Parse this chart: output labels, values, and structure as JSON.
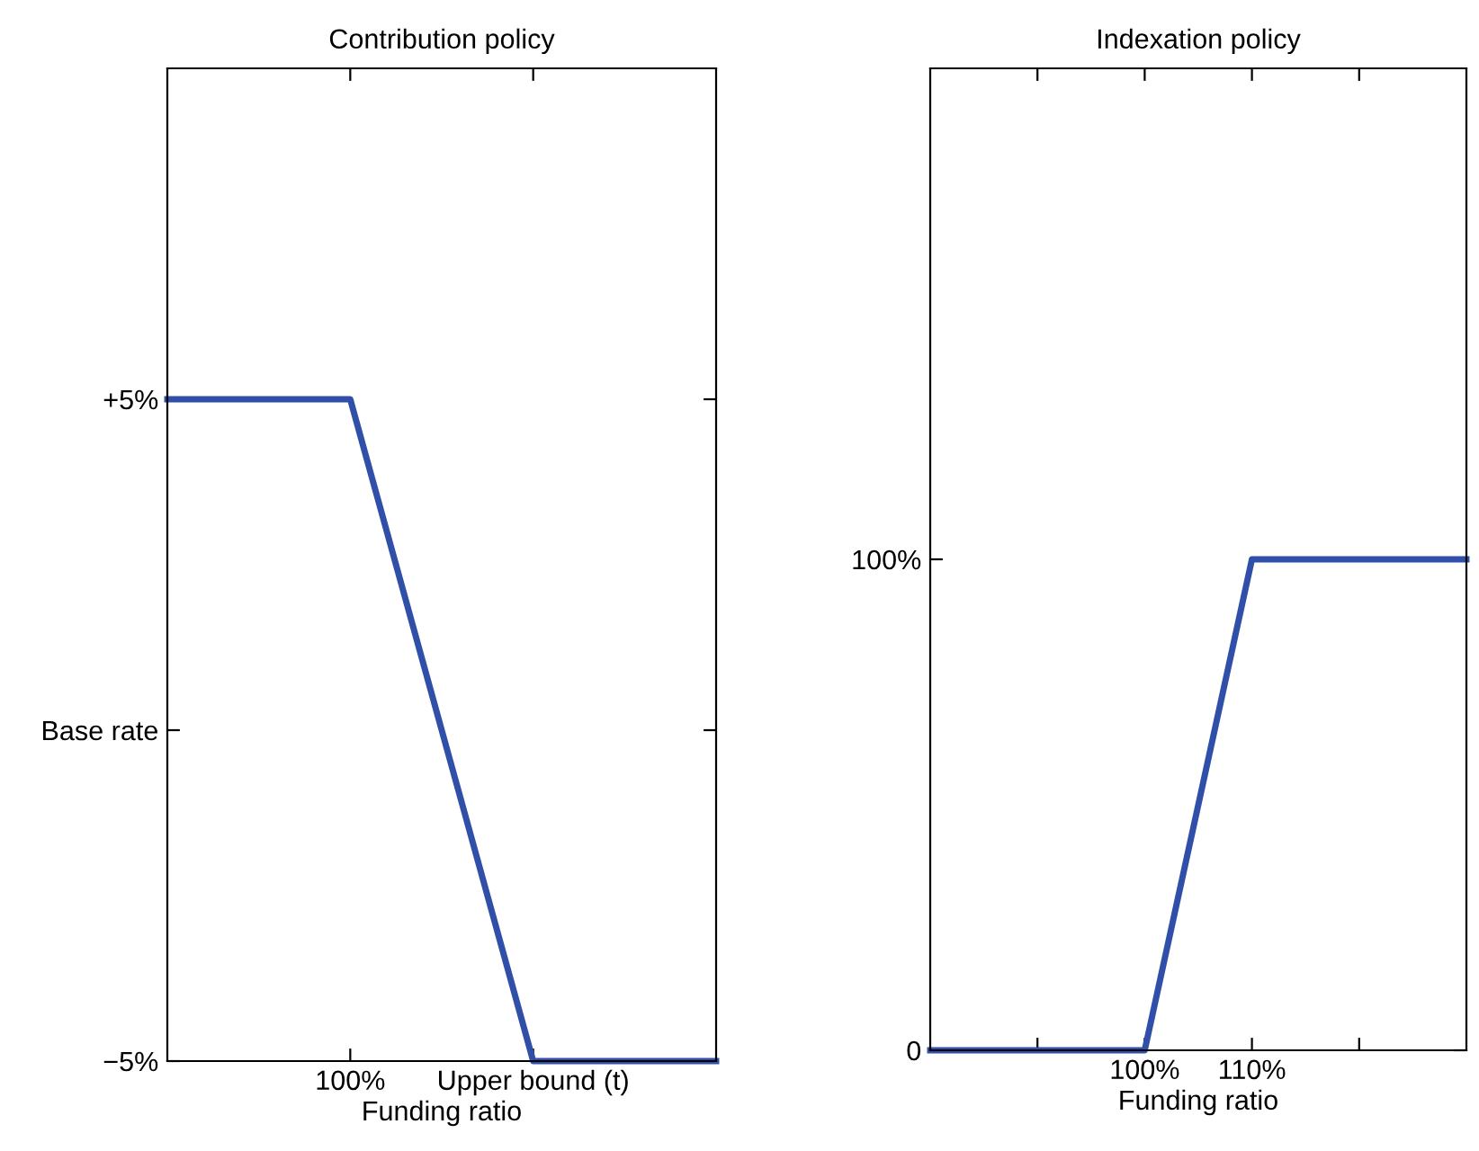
{
  "chart_data": [
    {
      "type": "line",
      "title": "Contribution policy",
      "xlabel": "Funding ratio",
      "categories": [
        null,
        "100%",
        "Upper bound (t)",
        null
      ],
      "series": [
        {
          "color": "#2f4fa8",
          "values": [
            5,
            5,
            -5,
            -5
          ]
        }
      ],
      "ylim": [
        -5,
        10
      ],
      "yticks": [
        {
          "value": -5,
          "label": "−5%"
        },
        {
          "value": 0,
          "label": "Base rate"
        },
        {
          "value": 5,
          "label": "+5%"
        }
      ],
      "grid": false,
      "legend": false,
      "marker": "none",
      "line_style": "solid"
    },
    {
      "type": "line",
      "title": "Indexation policy",
      "xlabel": "Funding ratio",
      "x": [
        80,
        100,
        110,
        130
      ],
      "series": [
        {
          "color": "#2f4fa8",
          "values": [
            0,
            0,
            100,
            100
          ]
        }
      ],
      "xlim": [
        80,
        130
      ],
      "xticks": [
        {
          "value": 90,
          "label": null
        },
        {
          "value": 100,
          "label": "100%"
        },
        {
          "value": 110,
          "label": "110%"
        },
        {
          "value": 120,
          "label": null
        }
      ],
      "ylim": [
        0,
        200
      ],
      "yticks": [
        {
          "value": 0,
          "label": "0"
        },
        {
          "value": 100,
          "label": "100%"
        }
      ],
      "grid": false,
      "legend": false,
      "marker": "none",
      "line_style": "solid"
    }
  ]
}
